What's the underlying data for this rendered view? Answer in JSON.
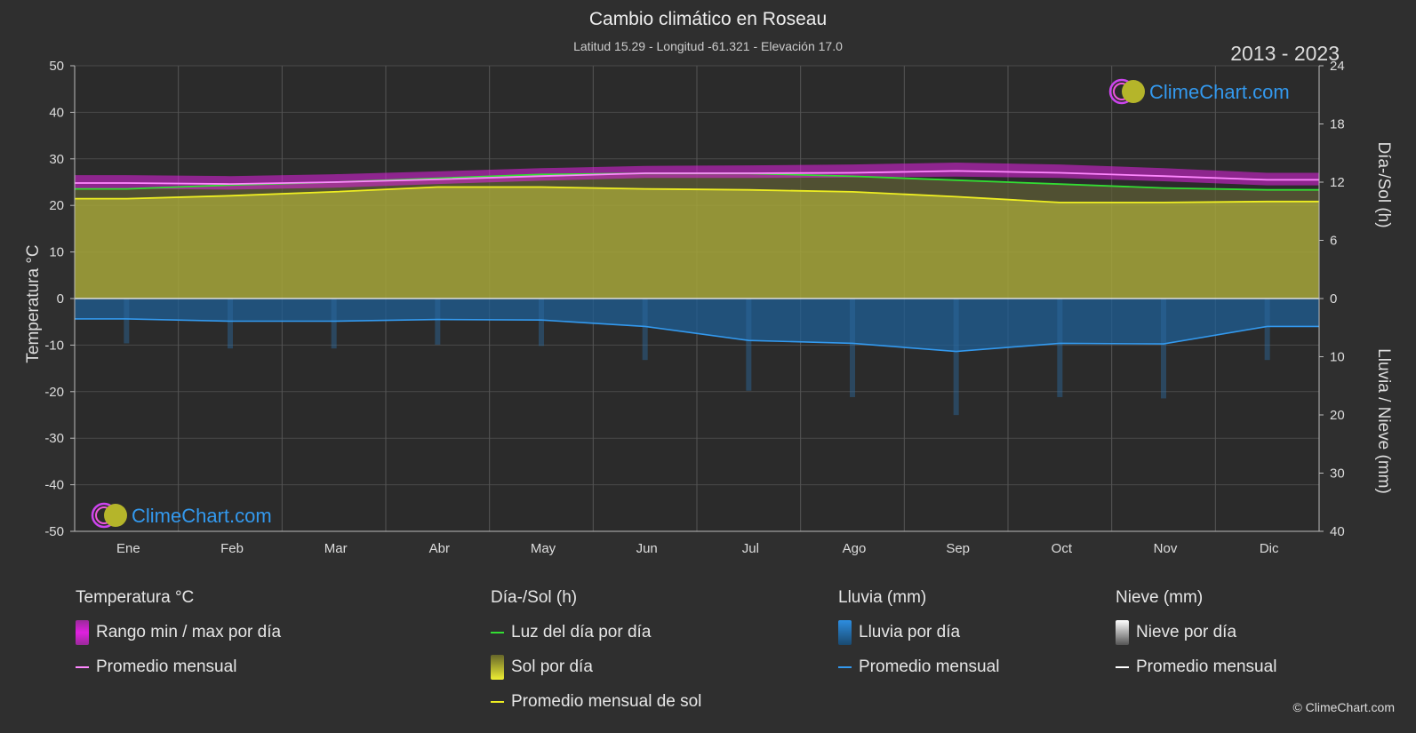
{
  "header": {
    "title": "Cambio climático en Roseau",
    "subtitle": "Latitud 15.29 - Longitud -61.321 - Elevación 17.0",
    "years": "2013 - 2023"
  },
  "logo_text": "ClimeChart.com",
  "copyright": "© ClimeChart.com",
  "legend": {
    "temperature": {
      "title": "Temperatura °C",
      "range_label": "Rango min / max por día",
      "avg_label": "Promedio mensual"
    },
    "daylight": {
      "title": "Día-/Sol (h)",
      "daylight_label": "Luz del día por día",
      "sun_label": "Sol por día",
      "sun_avg_label": "Promedio mensual de sol"
    },
    "rain": {
      "title": "Lluvia (mm)",
      "rain_label": "Lluvia por día",
      "avg_label": "Promedio mensual"
    },
    "snow": {
      "title": "Nieve (mm)",
      "snow_label": "Nieve por día",
      "avg_label": "Promedio mensual"
    }
  },
  "colors": {
    "background": "#2f2f2f",
    "temp_range": "#e020e0",
    "temp_avg": "#ff88ff",
    "daylight": "#33dd33",
    "sun_fill": "#a6a63a",
    "sun_avg": "#eeee22",
    "rain_fill": "#1f5f95",
    "rain_avg": "#3399ee",
    "snow_avg": "#ffffff",
    "logo_blue": "#3399ee"
  },
  "chart_data": {
    "type": "area",
    "months": [
      "Ene",
      "Feb",
      "Mar",
      "Abr",
      "May",
      "Jun",
      "Jul",
      "Ago",
      "Sep",
      "Oct",
      "Nov",
      "Dic"
    ],
    "axes": {
      "left": {
        "label": "Temperatura °C",
        "range": [
          -50,
          50
        ],
        "ticks": [
          "50",
          "40",
          "30",
          "20",
          "10",
          "0",
          "-10",
          "-20",
          "-30",
          "-40",
          "-50"
        ]
      },
      "right_top": {
        "label": "Día-/Sol (h)",
        "range": [
          0,
          24
        ],
        "ticks": [
          "24",
          "18",
          "12",
          "6",
          "0"
        ]
      },
      "right_bottom": {
        "label": "Lluvia / Nieve (mm)",
        "range": [
          0,
          40
        ],
        "ticks": [
          "10",
          "20",
          "30",
          "40"
        ]
      }
    },
    "grid": true,
    "series": [
      {
        "name": "Promedio mensual",
        "kind": "temperature_avg",
        "unit": "°C",
        "values": [
          24.8,
          24.6,
          25.0,
          25.6,
          26.3,
          26.9,
          26.9,
          27.0,
          27.4,
          27.0,
          26.3,
          25.5
        ]
      },
      {
        "name": "Rango min / max por día",
        "kind": "temperature_range",
        "unit": "°C",
        "min": [
          23.6,
          23.4,
          23.8,
          24.6,
          25.3,
          25.9,
          25.9,
          26.0,
          26.2,
          25.9,
          25.2,
          24.3
        ],
        "max": [
          26.5,
          26.3,
          26.7,
          27.3,
          28.0,
          28.5,
          28.6,
          28.8,
          29.2,
          28.8,
          28.0,
          27.0
        ]
      },
      {
        "name": "Luz del día por día",
        "kind": "daylight",
        "unit": "h",
        "values": [
          11.3,
          11.7,
          12.0,
          12.4,
          12.8,
          12.9,
          12.9,
          12.6,
          12.2,
          11.8,
          11.4,
          11.2
        ]
      },
      {
        "name": "Sol por día",
        "kind": "sunshine",
        "unit": "h",
        "values": [
          10.3,
          10.6,
          11.0,
          11.5,
          11.5,
          11.3,
          11.2,
          11.0,
          10.5,
          9.9,
          9.9,
          10.0
        ]
      },
      {
        "name": "Promedio mensual",
        "kind": "rain_avg",
        "unit": "mm",
        "values": [
          3.5,
          3.9,
          3.9,
          3.6,
          3.7,
          4.8,
          7.2,
          7.7,
          9.1,
          7.7,
          7.8,
          4.8
        ]
      }
    ]
  }
}
